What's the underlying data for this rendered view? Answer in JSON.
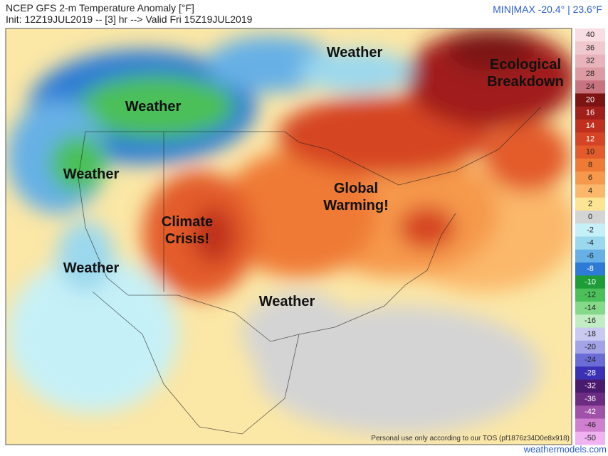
{
  "header": {
    "title": "NCEP GFS 2-m Temperature Anomaly [°F]",
    "init": "Init: 12Z19JUL2019 -- [3] hr --> Valid Fri 15Z19JUL2019",
    "minmax": "MIN|MAX -20.4° | 23.6°F"
  },
  "map_labels": [
    {
      "lines": [
        "Weather"
      ]
    },
    {
      "lines": [
        "Ecological",
        "Breakdown"
      ]
    },
    {
      "lines": [
        "Weather"
      ]
    },
    {
      "lines": [
        "Weather"
      ]
    },
    {
      "lines": [
        "Global",
        "Warming!"
      ]
    },
    {
      "lines": [
        "Climate",
        "Crisis!"
      ]
    },
    {
      "lines": [
        "Weather"
      ]
    },
    {
      "lines": [
        "Weather"
      ]
    }
  ],
  "colorbar": [
    {
      "label": 40,
      "color": "#f8dde3"
    },
    {
      "label": 36,
      "color": "#f2c8cf"
    },
    {
      "label": 32,
      "color": "#e8b3bb"
    },
    {
      "label": 28,
      "color": "#dc9aa3"
    },
    {
      "label": 24,
      "color": "#c9737e"
    },
    {
      "label": 20,
      "color": "#7c1414"
    },
    {
      "label": 16,
      "color": "#a11f1b"
    },
    {
      "label": 14,
      "color": "#bf301e"
    },
    {
      "label": 12,
      "color": "#d54424"
    },
    {
      "label": 10,
      "color": "#e35b2a"
    },
    {
      "label": 8,
      "color": "#ef7a35"
    },
    {
      "label": 6,
      "color": "#f6994c"
    },
    {
      "label": 4,
      "color": "#fbb86b"
    },
    {
      "label": 2,
      "color": "#fde493"
    },
    {
      "label": 0,
      "color": "#d4d4d4"
    },
    {
      "label": -2,
      "color": "#c6f0f7"
    },
    {
      "label": -4,
      "color": "#9bd8ee"
    },
    {
      "label": -6,
      "color": "#66b0e6"
    },
    {
      "label": -8,
      "color": "#2d7bd6"
    },
    {
      "label": -10,
      "color": "#1d9c38"
    },
    {
      "label": -12,
      "color": "#4bc059"
    },
    {
      "label": -14,
      "color": "#84da89"
    },
    {
      "label": -16,
      "color": "#c2edc2"
    },
    {
      "label": -18,
      "color": "#c9c9f1"
    },
    {
      "label": -20,
      "color": "#a3a3e8"
    },
    {
      "label": -24,
      "color": "#6c6cd8"
    },
    {
      "label": -28,
      "color": "#3a31b7"
    },
    {
      "label": -32,
      "color": "#4a1a6e"
    },
    {
      "label": -36,
      "color": "#6c2c82"
    },
    {
      "label": -42,
      "color": "#a051a8"
    },
    {
      "label": -46,
      "color": "#cf80cf"
    },
    {
      "label": -50,
      "color": "#f0b2f0"
    }
  ],
  "footer": {
    "tos": "Personal use only according to our TOS (pf1876z34D0e8x918)",
    "site": "weathermodels.com"
  }
}
